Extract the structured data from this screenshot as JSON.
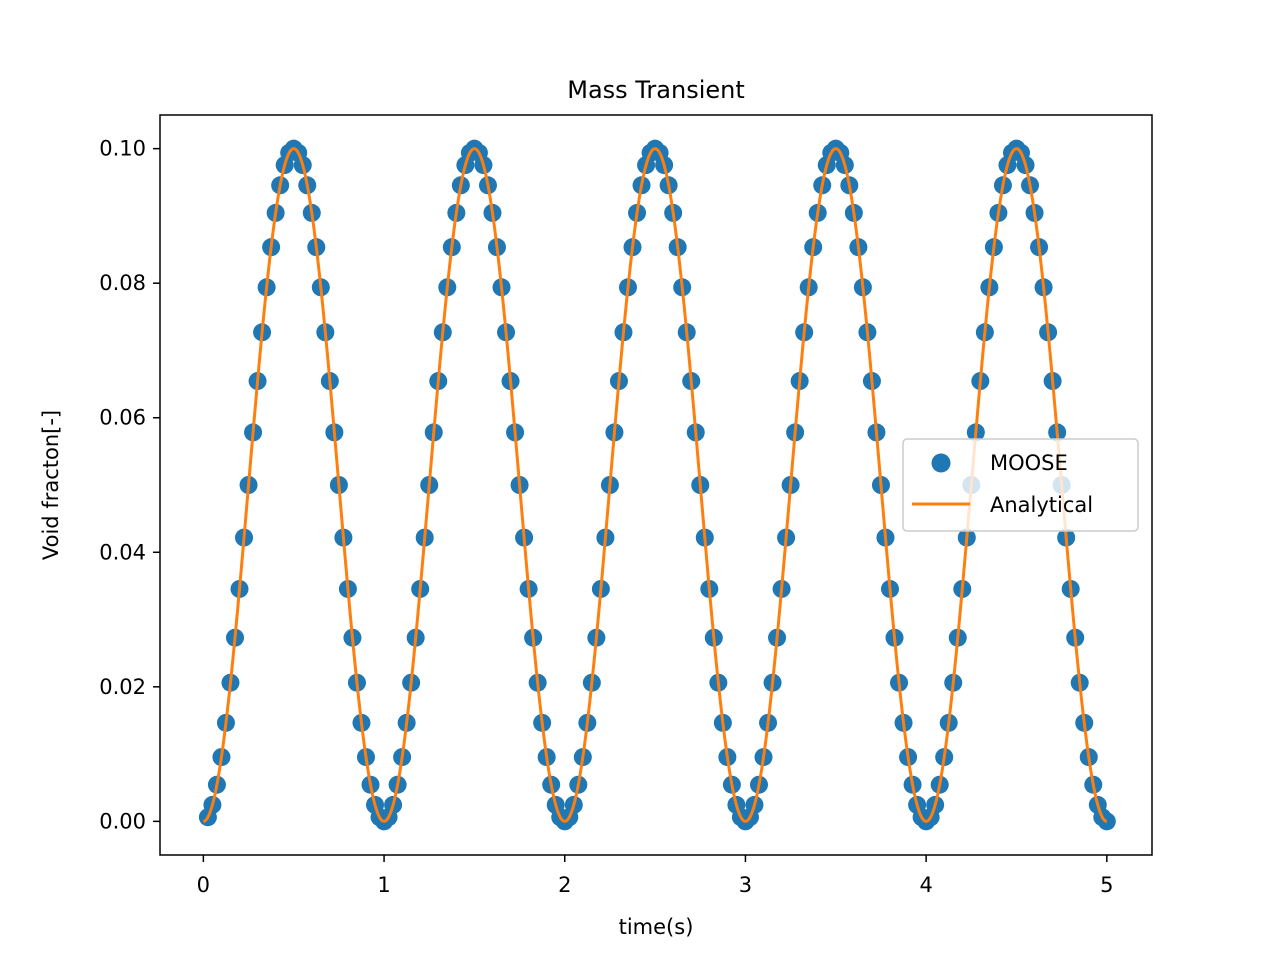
{
  "chart_data": {
    "type": "line",
    "title": "Mass Transient",
    "xlabel": "time(s)",
    "ylabel": "Void fracton[-]",
    "xlim": [
      -0.24,
      5.25
    ],
    "ylim": [
      -0.005,
      0.105
    ],
    "xticks": [
      0,
      1,
      2,
      3,
      4,
      5
    ],
    "xtick_labels": [
      "0",
      "1",
      "2",
      "3",
      "4",
      "5"
    ],
    "yticks": [
      0.0,
      0.02,
      0.04,
      0.06,
      0.08,
      0.1
    ],
    "ytick_labels": [
      "0.00",
      "0.02",
      "0.04",
      "0.06",
      "0.08",
      "0.10"
    ],
    "grid": false,
    "legend": {
      "placement": "center-right",
      "entries": [
        "MOOSE",
        "Analytical"
      ]
    },
    "series": [
      {
        "name": "MOOSE",
        "kind": "scatter",
        "color": "#1f77b4",
        "x_start": 0.025,
        "x_step": 0.025,
        "count": 200,
        "formula": "0.05*(1-cos(2*pi*x))",
        "note_points_every": 0.025
      },
      {
        "name": "Analytical",
        "kind": "line",
        "color": "#ff7f0e",
        "x_start": 0.0,
        "x_end": 5.0,
        "formula": "0.05*(1-cos(2*pi*x))"
      }
    ]
  }
}
